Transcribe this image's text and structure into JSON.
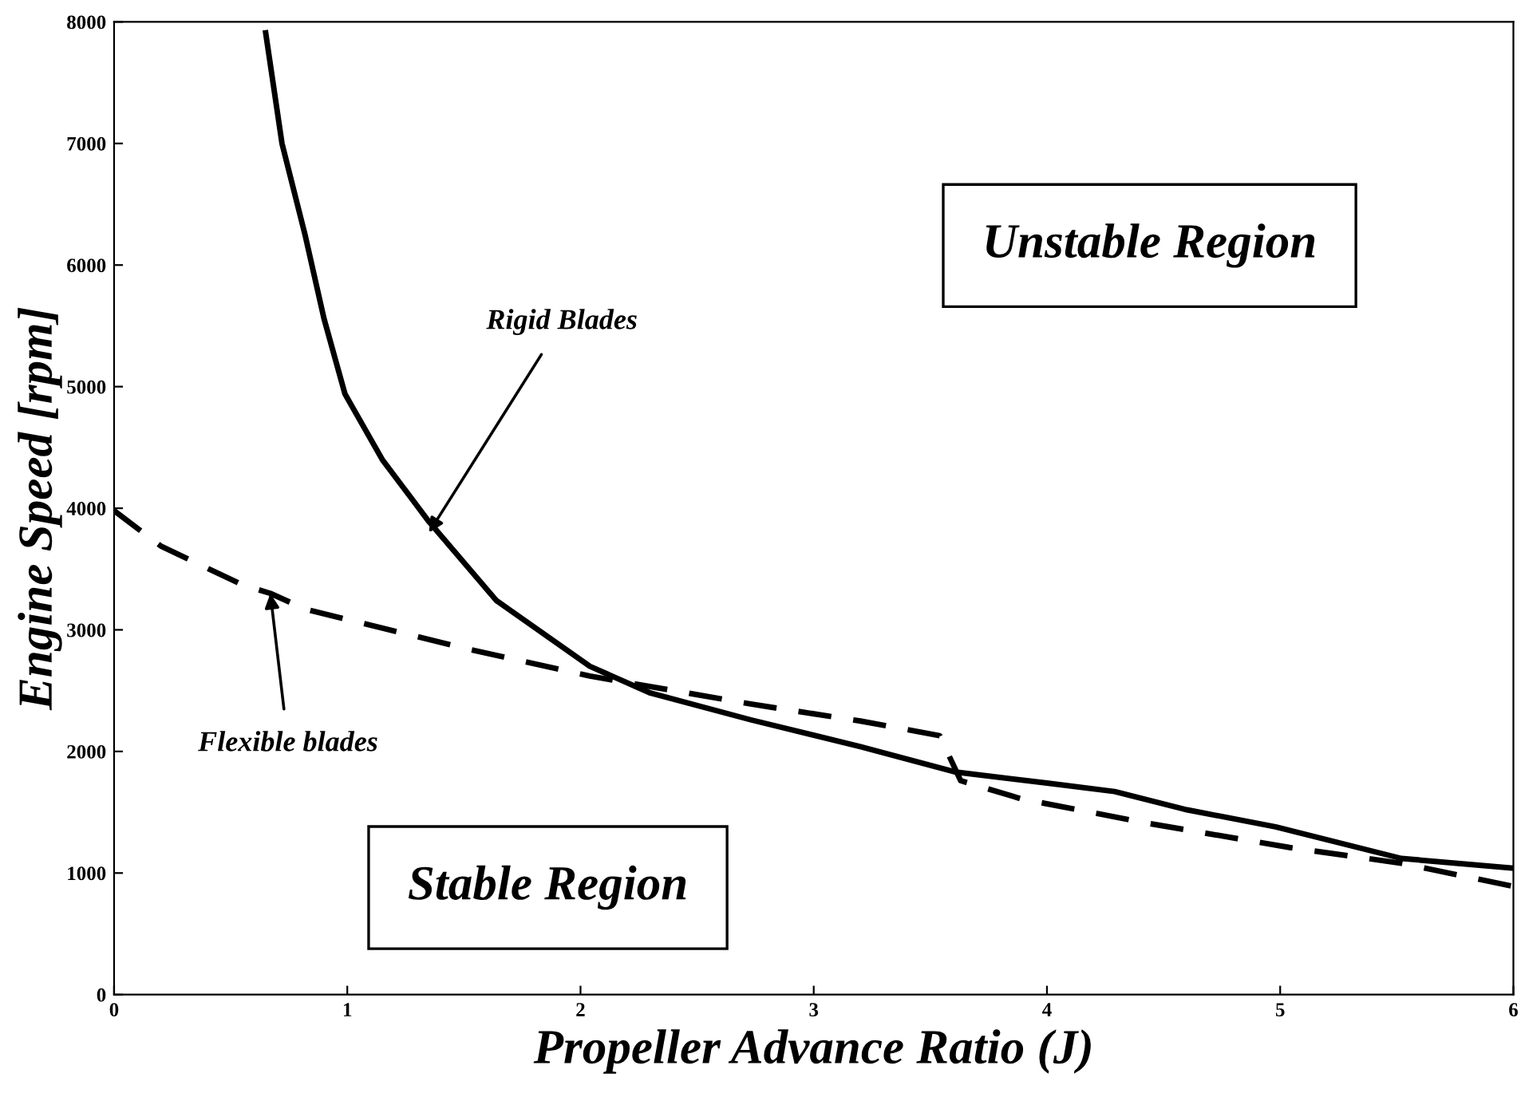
{
  "chart_data": {
    "type": "line",
    "xlabel": "Propeller Advance Ratio (J)",
    "ylabel": "Engine Speed [rpm]",
    "xlim": [
      0,
      6
    ],
    "ylim": [
      0,
      8000
    ],
    "xticks": [
      0,
      1,
      2,
      3,
      4,
      5,
      6
    ],
    "yticks": [
      0,
      1000,
      2000,
      3000,
      4000,
      5000,
      6000,
      7000,
      8000
    ],
    "grid": false,
    "legend": false,
    "series": [
      {
        "color": "#000000",
        "line_style": "solid",
        "x": [
          0.65,
          0.72,
          0.82,
          0.9,
          0.99,
          1.15,
          1.35,
          1.64,
          2.04,
          2.3,
          2.73,
          3.2,
          3.61,
          4.0,
          4.29,
          4.6,
          4.98,
          5.52,
          6.0
        ],
        "values": [
          7910,
          7000,
          6240,
          5560,
          4940,
          4400,
          3890,
          3240,
          2700,
          2480,
          2260,
          2040,
          1830,
          1740,
          1670,
          1520,
          1380,
          1120,
          1040
        ]
      },
      {
        "color": "#000000",
        "line_style": "dashed",
        "x": [
          0.0,
          0.2,
          0.55,
          0.67,
          0.82,
          1.5,
          2.04,
          2.73,
          3.2,
          3.54,
          3.63,
          3.89,
          4.43,
          5.04,
          5.52,
          6.0
        ],
        "values": [
          3980,
          3690,
          3370,
          3300,
          3170,
          2850,
          2620,
          2390,
          2250,
          2130,
          1760,
          1610,
          1410,
          1210,
          1080,
          890
        ]
      }
    ],
    "annotations": [
      {
        "text": "Rigid Blades",
        "x": 1.35,
        "y": 3800
      },
      {
        "text": "Flexible blades",
        "x": 0.67,
        "y": 3300
      },
      "Unstable Region",
      "Stable Region"
    ]
  }
}
